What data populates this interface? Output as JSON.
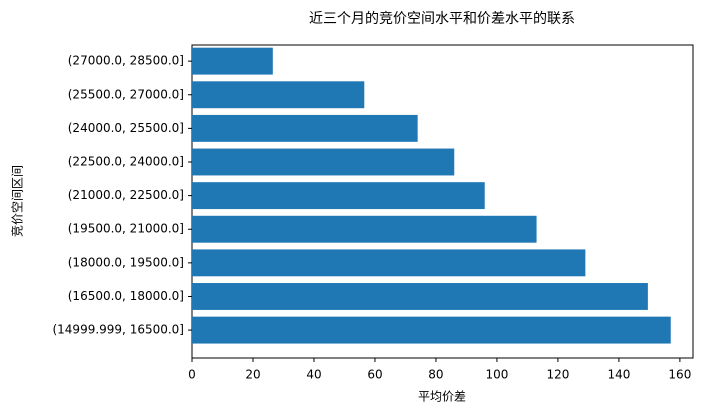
{
  "chart_data": {
    "type": "barh",
    "title": "近三个月的竞价空间水平和价差水平的联系",
    "x_label": "平均价差",
    "y_label": "竞价空间区间",
    "categories": [
      "(14999.999, 16500.0]",
      "(16500.0, 18000.0]",
      "(18000.0, 19500.0]",
      "(19500.0, 21000.0]",
      "(21000.0, 22500.0]",
      "(22500.0, 24000.0]",
      "(24000.0, 25500.0]",
      "(25500.0, 27000.0]",
      "(27000.0, 28500.0]"
    ],
    "values": [
      157,
      149.5,
      129,
      113,
      96,
      86,
      74,
      56.5,
      26.5
    ],
    "color": "#1f77b4",
    "xlim": [
      0,
      164.3
    ],
    "xticks": [
      0,
      20,
      40,
      60,
      80,
      100,
      120,
      140,
      160
    ],
    "grid": false
  }
}
